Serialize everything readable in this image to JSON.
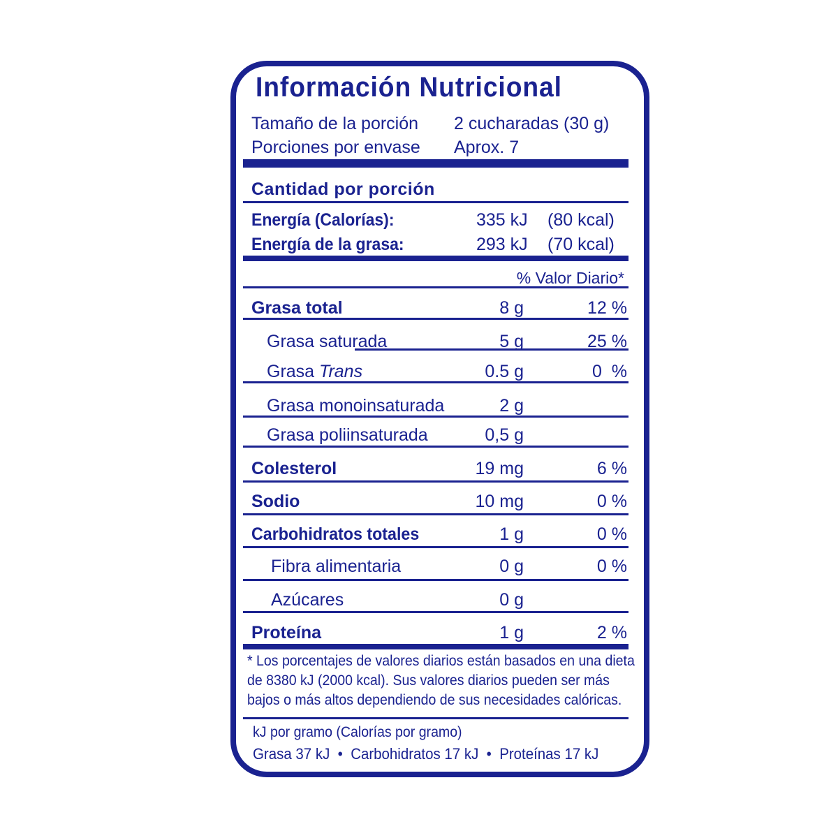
{
  "title": "Información Nutricional",
  "serving": {
    "size_label": "Tamaño de la porción",
    "size_value": "2 cucharadas (30 g)",
    "per_container_label": "Porciones por envase",
    "per_container_value": "Aprox. 7"
  },
  "amount_per_serving": "Cantidad por porción",
  "energy": [
    {
      "label": "Energía (Calorías):",
      "kj": "335 kJ",
      "kcal": "(80 kcal)"
    },
    {
      "label": "Energía de la grasa:",
      "kj": "293 kJ",
      "kcal": "(70 kcal)"
    }
  ],
  "daily_value_header": "% Valor Diario*",
  "nutrients": [
    {
      "label": "Grasa total",
      "amount": "8 g",
      "dv": "12 %"
    },
    {
      "label": "Grasa saturada",
      "amount": "5 g",
      "dv": "25 %"
    },
    {
      "label": "Grasa ",
      "label_italic": "Trans",
      "amount": "0.5 g",
      "dv": "0  %"
    },
    {
      "label": "Grasa monoinsaturada",
      "amount": "2 g",
      "dv": ""
    },
    {
      "label": "Grasa poliinsaturada",
      "amount": "0,5 g",
      "dv": ""
    },
    {
      "label": "Colesterol",
      "amount": "19 mg",
      "dv": "6 %"
    },
    {
      "label": "Sodio",
      "amount": "10 mg",
      "dv": "0 %"
    },
    {
      "label": "Carbohidratos totales",
      "amount": "1 g",
      "dv": "0 %"
    },
    {
      "label": "Fibra alimentaria",
      "amount": "0 g",
      "dv": "0 %"
    },
    {
      "label": "Azúcares",
      "amount": "0 g",
      "dv": ""
    },
    {
      "label": "Proteína",
      "amount": "1 g",
      "dv": "2 %"
    }
  ],
  "footnote": [
    "* Los porcentajes de valores diarios están basados en una dieta",
    "de 8380 kJ (2000 kcal). Sus valores diarios pueden ser más",
    "bajos o más altos dependiendo de sus necesidades calóricas."
  ],
  "energy_per_gram": {
    "header": "kJ por gramo (Calorías por gramo)",
    "values": "Grasa 37 kJ  •  Carbohidratos 17 kJ  •  Proteínas 17 kJ"
  },
  "colors": {
    "ink": "#1a2290",
    "background": "#ffffff"
  }
}
